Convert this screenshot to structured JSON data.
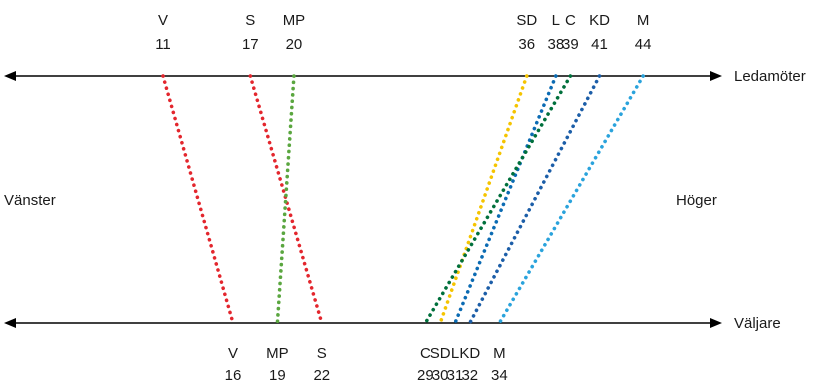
{
  "axes": {
    "top_label": "Ledamöter",
    "bottom_label": "Väljare",
    "left_label": "Vänster",
    "right_label": "Höger"
  },
  "parties": [
    {
      "name": "V",
      "ledamoter": 11,
      "valjare": 16,
      "color": "#e3262d"
    },
    {
      "name": "S",
      "ledamoter": 17,
      "valjare": 22,
      "color": "#e3262d"
    },
    {
      "name": "MP",
      "ledamoter": 20,
      "valjare": 19,
      "color": "#5aa63f"
    },
    {
      "name": "SD",
      "ledamoter": 36,
      "valjare": 30,
      "color": "#f5c400"
    },
    {
      "name": "L",
      "ledamoter": 38,
      "valjare": 31,
      "color": "#0b6bb3"
    },
    {
      "name": "C",
      "ledamoter": 39,
      "valjare": 29,
      "color": "#00703c"
    },
    {
      "name": "KD",
      "ledamoter": 41,
      "valjare": 32,
      "color": "#1c5ea8"
    },
    {
      "name": "M",
      "ledamoter": 44,
      "valjare": 34,
      "color": "#2aa3dc"
    }
  ]
}
